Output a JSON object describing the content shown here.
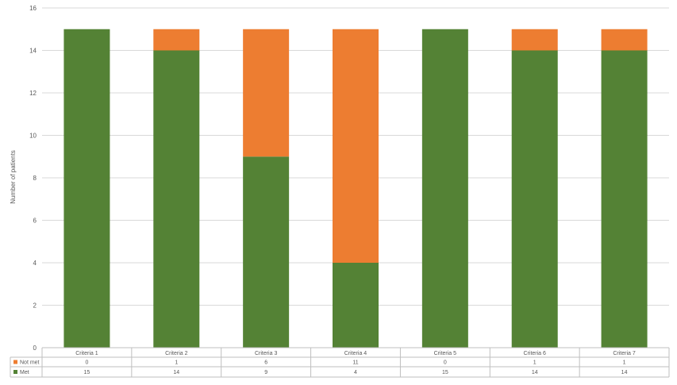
{
  "chart_data": {
    "type": "bar",
    "stacked": true,
    "categories": [
      "Criteria 1",
      "Criteria 2",
      "Criteria 3",
      "Criteria 4",
      "Criteria 5",
      "Criteria 6",
      "Criteria 7"
    ],
    "series": [
      {
        "name": "Met",
        "color": "#548235",
        "values": [
          15,
          14,
          9,
          4,
          15,
          14,
          14
        ]
      },
      {
        "name": "Not met",
        "color": "#ed7d31",
        "values": [
          0,
          1,
          6,
          11,
          0,
          1,
          1
        ]
      }
    ],
    "ylabel": "Number of patients",
    "ylim": [
      0,
      16
    ],
    "yticks": [
      0,
      2,
      4,
      6,
      8,
      10,
      12,
      14,
      16
    ],
    "grid": true,
    "legend": "data-table",
    "data_table_rows": [
      "Not met",
      "Met"
    ]
  }
}
